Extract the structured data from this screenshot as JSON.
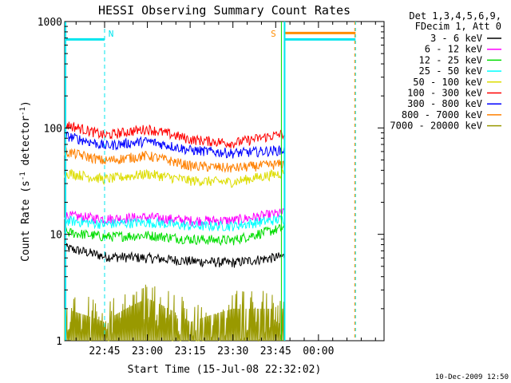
{
  "chart_data": {
    "type": "line",
    "title": "HESSI Observing Summary Count Rates",
    "xlabel": "Start Time (15-Jul-08 22:32:02)",
    "ylabel_main": "Count Rate (s",
    "ylabel_sup1": "-1",
    "ylabel_mid": " detector",
    "ylabel_sup2": "-1",
    "ylabel_end": ")",
    "yscale": "log",
    "ylim": [
      1,
      1000
    ],
    "xlim_minutes": [
      -14,
      98
    ],
    "x_ticks": [
      "22:45",
      "23:00",
      "23:15",
      "23:30",
      "23:45",
      "00:00"
    ],
    "x_tick_minutes": [
      0,
      15,
      30,
      45,
      60,
      75
    ],
    "y_ticks": [
      "1",
      "10",
      "100",
      "1000"
    ],
    "y_tick_values": [
      1,
      10,
      100,
      1000
    ],
    "legend_header": [
      "Det 1,3,4,5,6,9,",
      "FDecim 1, Att 0"
    ],
    "legend_position": "right",
    "markers": [
      {
        "label": "N",
        "minute": 0,
        "color": "#00e5ee"
      },
      {
        "label": "S",
        "minute": 62,
        "color": "#ff8c00"
      }
    ],
    "night_end_minute": 62,
    "orbit_end_minute": 88,
    "data_end_minute": 63,
    "series": [
      {
        "name": "3 - 6 keV",
        "color": "#000000",
        "knots_minutes": [
          -14,
          0,
          15,
          30,
          45,
          63
        ],
        "knots_values": [
          7.5,
          6.2,
          6.0,
          5.6,
          5.4,
          6.2
        ]
      },
      {
        "name": "6 - 12 keV",
        "color": "#ff00ff",
        "knots_minutes": [
          -14,
          0,
          15,
          30,
          45,
          63
        ],
        "knots_values": [
          15,
          14,
          14.5,
          13.5,
          13.5,
          16
        ]
      },
      {
        "name": "12 - 25 keV",
        "color": "#00dd00",
        "knots_minutes": [
          -14,
          0,
          15,
          30,
          45,
          63
        ],
        "knots_values": [
          10.5,
          9.5,
          9.8,
          9.0,
          8.8,
          11.5
        ]
      },
      {
        "name": "25 - 50 keV",
        "color": "#00ffff",
        "knots_minutes": [
          -14,
          0,
          15,
          30,
          45,
          63
        ],
        "knots_values": [
          13.5,
          12.5,
          13,
          12,
          12,
          14
        ]
      },
      {
        "name": "50 - 100 keV",
        "color": "#dddd00",
        "knots_minutes": [
          -14,
          0,
          15,
          30,
          45,
          63
        ],
        "knots_values": [
          38,
          33,
          37,
          32,
          31,
          38
        ]
      },
      {
        "name": "100 - 300 keV",
        "color": "#ff0000",
        "knots_minutes": [
          -14,
          0,
          15,
          30,
          45,
          63
        ],
        "knots_values": [
          108,
          85,
          98,
          78,
          72,
          88
        ]
      },
      {
        "name": "300 - 800 keV",
        "color": "#0000ff",
        "knots_minutes": [
          -14,
          0,
          15,
          30,
          45,
          63
        ],
        "knots_values": [
          85,
          68,
          75,
          62,
          58,
          62
        ]
      },
      {
        "name": "800 - 7000 keV",
        "color": "#ff8000",
        "knots_minutes": [
          -14,
          0,
          15,
          30,
          45,
          63
        ],
        "knots_values": [
          60,
          49,
          55,
          44,
          42,
          46
        ]
      },
      {
        "name": "7000 - 20000 keV",
        "color": "#999900",
        "knots_minutes": [
          -14,
          0,
          15,
          30,
          45,
          63
        ],
        "knots_values": [
          2,
          1.5,
          2.5,
          1.5,
          2,
          2
        ]
      }
    ],
    "flag_lines": [
      {
        "color": "#00e5ee",
        "value": 680
      },
      {
        "color": "#ff8c00",
        "value": 780
      }
    ]
  },
  "footer_date": "10-Dec-2009 12:50"
}
